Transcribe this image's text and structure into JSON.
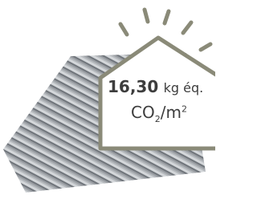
{
  "badge": {
    "value": "16,30",
    "unit": "kg éq.",
    "formula": {
      "co": "CO",
      "co_sub": "2",
      "per": "/m",
      "per_sup": "2"
    }
  }
}
